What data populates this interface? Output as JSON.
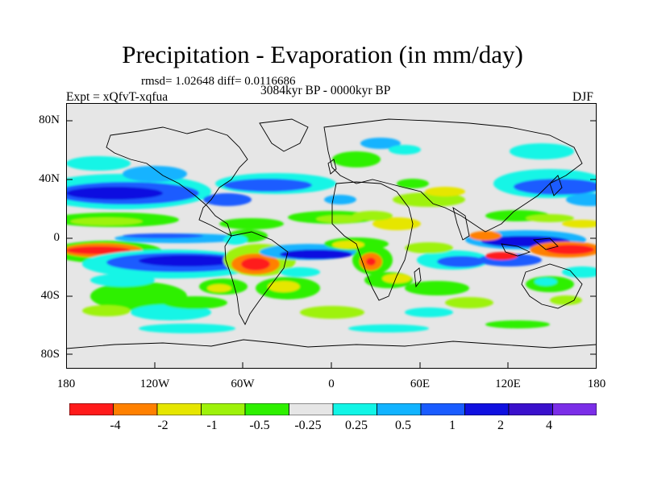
{
  "title": "Precipitation - Evaporation (in mm/day)",
  "stats": "rmsd= 1.02648 diff= 0.0116686",
  "period": "3084kyr BP - 0000kyr BP",
  "experiment": "Expt = xQfvT-xqfua",
  "season": "DJF",
  "y_axis_labels": [
    "80N",
    "40N",
    "0",
    "40S",
    "80S"
  ],
  "x_axis_labels": [
    "180",
    "120W",
    "60W",
    "0",
    "60E",
    "120E",
    "180"
  ],
  "colorbar": {
    "colors": [
      "#ff1a1a",
      "#ff8000",
      "#e6e600",
      "#9ef20a",
      "#2ef000",
      "#e6e6e6",
      "#12f5e6",
      "#12b3ff",
      "#1a5cff",
      "#1010e0",
      "#3a10cc",
      "#7b2ee8"
    ],
    "labels": [
      "-4",
      "-2",
      "-1",
      "-0.5",
      "-0.25",
      "0.25",
      "0.5",
      "1",
      "2",
      "4"
    ]
  },
  "background_color": "#e6e6e6"
}
